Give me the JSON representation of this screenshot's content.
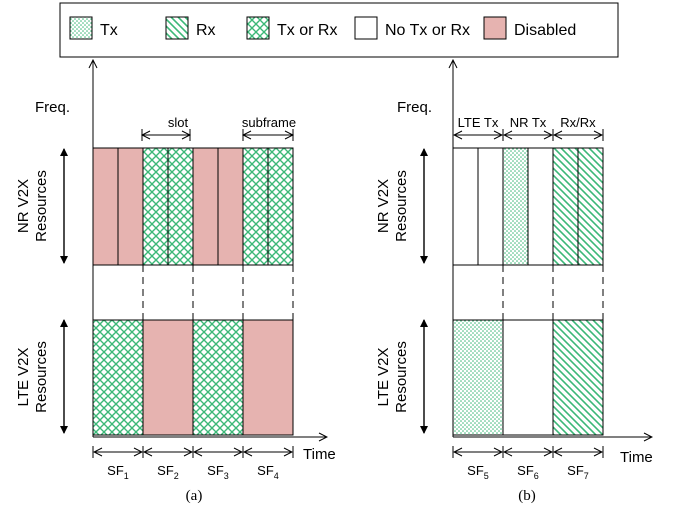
{
  "legend": {
    "items": [
      {
        "key": "tx",
        "label": "Tx"
      },
      {
        "key": "rx",
        "label": "Rx"
      },
      {
        "key": "txrx",
        "label": "Tx or Rx"
      },
      {
        "key": "none",
        "label": "No Tx or Rx"
      },
      {
        "key": "disabled",
        "label": "Disabled"
      }
    ]
  },
  "colors": {
    "pattern_green": "#3cb878",
    "disabled_fill": "#e6b3b0",
    "stroke": "#000000",
    "background": "#ffffff"
  },
  "axes": {
    "freq_label": "Freq.",
    "time_label": "Time"
  },
  "rows": {
    "nr_top": "NR V2X",
    "nr_bottom": "Resources",
    "lte_top": "LTE V2X",
    "lte_bottom": "Resources"
  },
  "panel_a": {
    "caption": "(a)",
    "annotations": {
      "slot": "slot",
      "subframe": "subframe"
    },
    "nr_slots": [
      "disabled",
      "disabled",
      "txrx",
      "txrx",
      "disabled",
      "disabled",
      "txrx",
      "txrx"
    ],
    "lte_subframes": [
      "txrx",
      "disabled",
      "txrx",
      "disabled"
    ],
    "subframes": [
      {
        "base": "SF",
        "sub": "1"
      },
      {
        "base": "SF",
        "sub": "2"
      },
      {
        "base": "SF",
        "sub": "3"
      },
      {
        "base": "SF",
        "sub": "4"
      }
    ]
  },
  "panel_b": {
    "caption": "(b)",
    "annotations": {
      "lte_tx": "LTE Tx",
      "nr_tx": "NR Tx",
      "rx_rx": "Rx/Rx"
    },
    "nr_slots": [
      "none",
      "none",
      "tx",
      "none",
      "rx",
      "rx"
    ],
    "lte_subframes": [
      "tx",
      "none",
      "rx"
    ],
    "subframes": [
      {
        "base": "SF",
        "sub": "5"
      },
      {
        "base": "SF",
        "sub": "6"
      },
      {
        "base": "SF",
        "sub": "7"
      }
    ]
  }
}
